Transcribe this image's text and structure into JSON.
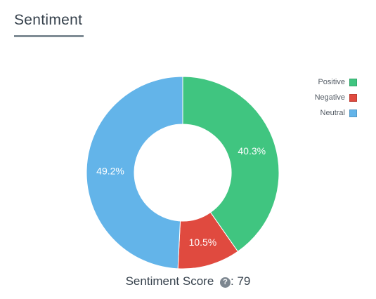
{
  "panel": {
    "title": "Sentiment"
  },
  "chart_data": {
    "type": "pie",
    "variant": "donut",
    "categories": [
      "Positive",
      "Negative",
      "Neutral"
    ],
    "values": [
      40.3,
      10.5,
      49.2
    ],
    "labels": [
      "40.3%",
      "10.5%",
      "49.2%"
    ],
    "colors": [
      "#40c580",
      "#e04a3f",
      "#63b4e9"
    ],
    "legend_position": "top-right"
  },
  "score": {
    "label": "Sentiment Score",
    "separator": ": ",
    "value": "79",
    "help_icon": "question-circle-icon"
  }
}
